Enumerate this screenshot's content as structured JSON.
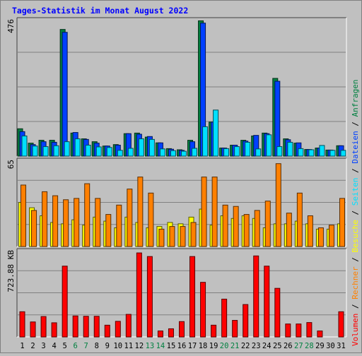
{
  "chart_data": {
    "type": "bar",
    "title": "Tages-Statistik im Monat August 2022",
    "categories": [
      "1",
      "2",
      "3",
      "4",
      "5",
      "6",
      "7",
      "8",
      "9",
      "10",
      "11",
      "12",
      "13",
      "14",
      "15",
      "16",
      "17",
      "18",
      "19",
      "20",
      "21",
      "22",
      "23",
      "24",
      "25",
      "26",
      "27",
      "28",
      "29",
      "30",
      "31"
    ],
    "weekend_days": [
      "6",
      "7",
      "13",
      "14",
      "20",
      "21",
      "27",
      "28"
    ],
    "legend": {
      "text": [
        "Volumen",
        "/",
        "Rechner",
        "/",
        "Besuche",
        "/",
        "Seiten",
        "/",
        "Dateien",
        "/",
        "Anfragen"
      ]
    },
    "panels": [
      {
        "name": "requests_files",
        "ymax_label": "476",
        "ylim": [
          0,
          476
        ],
        "series": [
          {
            "name": "Anfragen",
            "color": "#008040",
            "values": [
              95,
              45,
              55,
              55,
              440,
              80,
              60,
              50,
              35,
              40,
              78,
              80,
              66,
              46,
              26,
              22,
              55,
              470,
              118,
              28,
              38,
              55,
              70,
              80,
              270,
              60,
              45,
              23,
              28,
              21,
              36
            ]
          },
          {
            "name": "Dateien",
            "color": "#0040ff",
            "values": [
              85,
              40,
              50,
              48,
              430,
              82,
              58,
              45,
              35,
              38,
              78,
              76,
              68,
              46,
              24,
              20,
              50,
              462,
              118,
              28,
              38,
              52,
              72,
              78,
              260,
              57,
              46,
              23,
              28,
              21,
              36
            ]
          },
          {
            "name": "Seiten",
            "color": "#00e0ff",
            "values": [
              70,
              35,
              33,
              36,
              50,
              60,
              38,
              32,
              30,
              20,
              27,
              60,
              58,
              25,
              19,
              17,
              27,
              102,
              160,
              26,
              33,
              48,
              25,
              74,
              33,
              48,
              26,
              22,
              37,
              20,
              20
            ]
          }
        ]
      },
      {
        "name": "visits_pages",
        "ymax_label": "65",
        "ylim": [
          0,
          65
        ],
        "series": [
          {
            "name": "Besuche",
            "color": "#ffff00",
            "values": [
              33,
              29,
              23,
              18,
              17,
              20,
              16,
              22,
              19,
              14,
              22,
              18,
              14,
              15,
              18,
              17,
              22,
              28,
              16,
              23,
              21,
              23,
              21,
              14,
              17,
              17,
              19,
              17,
              13,
              13,
              17
            ]
          },
          {
            "name": "Rechner",
            "color": "#ff8000",
            "values": [
              46,
              27,
              41,
              38,
              35,
              36,
              47,
              36,
              24,
              31,
              43,
              52,
              40,
              13,
              15,
              15,
              18,
              52,
              52,
              31,
              30,
              24,
              27,
              34,
              62,
              25,
              40,
              23,
              14,
              16,
              36
            ]
          }
        ]
      },
      {
        "name": "volume",
        "ymax_label": "723.88 KB",
        "ylim": [
          0,
          723.88
        ],
        "series": [
          {
            "name": "Volumen",
            "color": "#ff0000",
            "values": [
              210,
              125,
              170,
              118,
              590,
              175,
              172,
              172,
              98,
              130,
              188,
              700,
              670,
              50,
              68,
              128,
              670,
              455,
              98,
              315,
              138,
              270,
              675,
              590,
              405,
              108,
              108,
              120,
              50,
              0,
              210
            ]
          }
        ]
      }
    ],
    "grid": true
  }
}
